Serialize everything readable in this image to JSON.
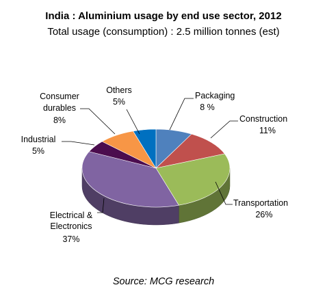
{
  "header": {
    "title": "India : Aluminium usage by end use sector, 2012",
    "subtitle": "Total usage (consumption) : 2.5 million tonnes (est)"
  },
  "footer": {
    "source": "Source: MCG research"
  },
  "chart_data": {
    "type": "pie",
    "title": "India : Aluminium usage by end use sector, 2012",
    "subtitle": "Total usage (consumption) : 2.5 million tonnes (est)",
    "three_d": true,
    "slices": [
      {
        "name": "Packaging",
        "value": 8,
        "value_label": "8 %",
        "color": "#4F81BD"
      },
      {
        "name": "Construction",
        "value": 11,
        "value_label": "11%",
        "color": "#C0504D"
      },
      {
        "name": "Transportation",
        "value": 26,
        "value_label": "26%",
        "color": "#9BBB59"
      },
      {
        "name": "Electrical & Electronics",
        "value": 37,
        "value_label": "37%",
        "color": "#8064A2"
      },
      {
        "name": "Industrial",
        "value": 5,
        "value_label": "5%",
        "color": "#4B0C4E"
      },
      {
        "name": "Consumer durables",
        "value": 8,
        "value_label": "8%",
        "color": "#F79646"
      },
      {
        "name": "Others",
        "value": 5,
        "value_label": "5%",
        "color": "#0070C0"
      }
    ]
  }
}
